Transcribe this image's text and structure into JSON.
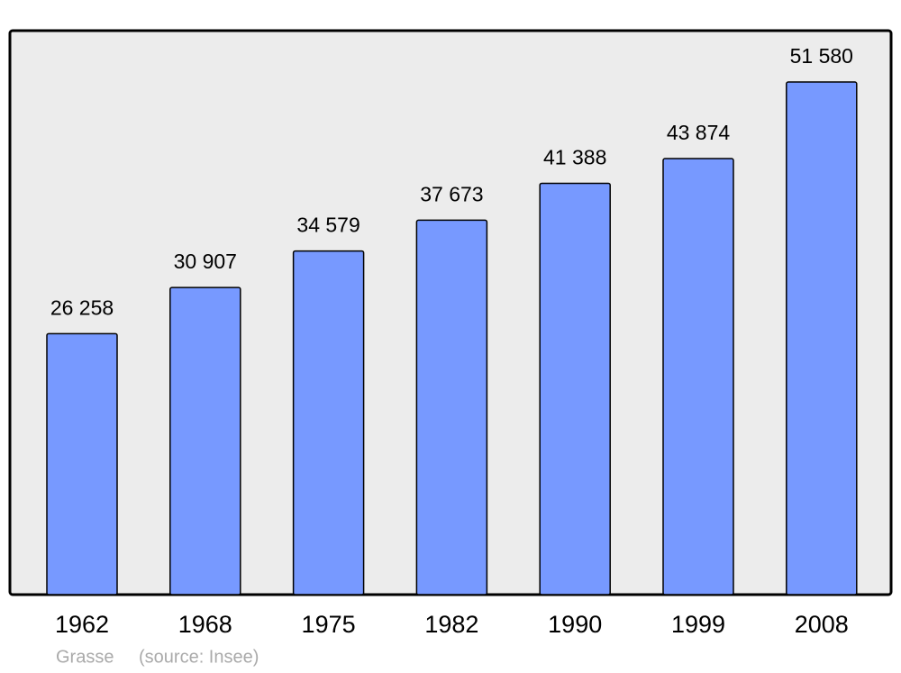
{
  "chart_data": {
    "type": "bar",
    "categories": [
      "1962",
      "1968",
      "1975",
      "1982",
      "1990",
      "1999",
      "2008"
    ],
    "values": [
      26258,
      30907,
      34579,
      37673,
      41388,
      43874,
      51580
    ],
    "value_labels": [
      "26 258",
      "30 907",
      "34 579",
      "37 673",
      "41 388",
      "43 874",
      "51 580"
    ],
    "color": "#7799ff",
    "ylim": [
      0,
      56750
    ],
    "location": "Grasse",
    "source": "(source: Insee)"
  }
}
